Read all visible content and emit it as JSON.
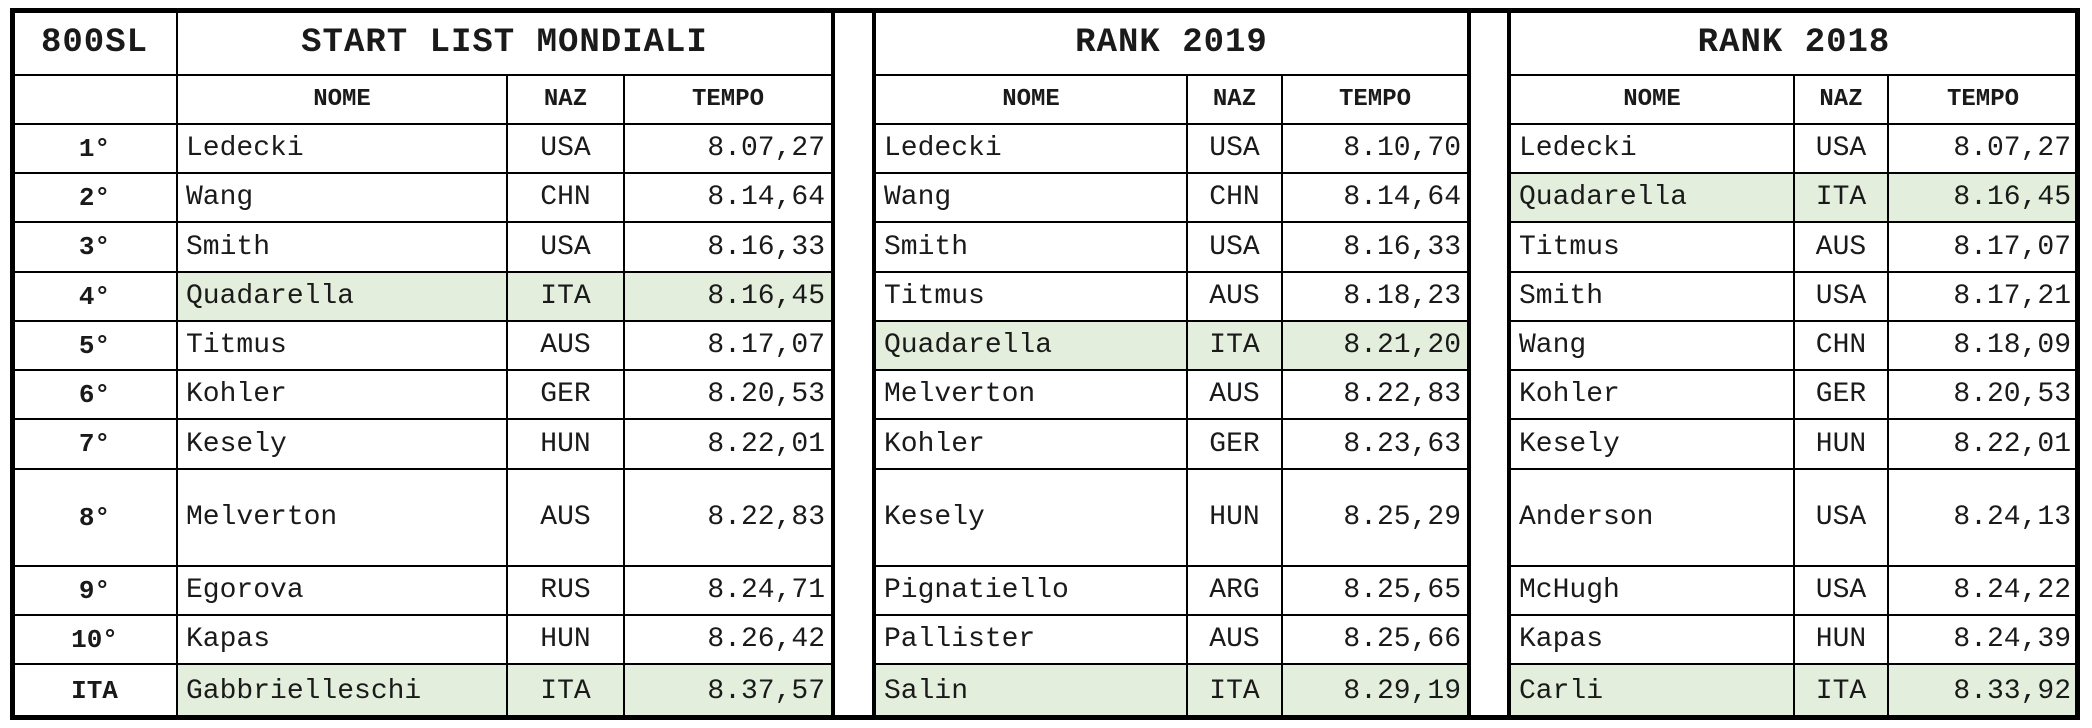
{
  "corner_label": "800SL",
  "rank_header": "",
  "column_headers": {
    "nome": "NOME",
    "naz": "NAZ",
    "tempo": "TEMPO"
  },
  "row_labels": [
    "1°",
    "2°",
    "3°",
    "4°",
    "5°",
    "6°",
    "7°",
    "8°",
    "9°",
    "10°",
    "ITA"
  ],
  "highlight_color": "#e3efdc",
  "sections": [
    {
      "id": "start-list",
      "title": "START LIST MONDIALI",
      "rows": [
        {
          "nome": "Ledecki",
          "naz": "USA",
          "tempo": "8.07,27",
          "highlight": false
        },
        {
          "nome": "Wang",
          "naz": "CHN",
          "tempo": "8.14,64",
          "highlight": false
        },
        {
          "nome": "Smith",
          "naz": "USA",
          "tempo": "8.16,33",
          "highlight": false
        },
        {
          "nome": "Quadarella",
          "naz": "ITA",
          "tempo": "8.16,45",
          "highlight": true
        },
        {
          "nome": "Titmus",
          "naz": "AUS",
          "tempo": "8.17,07",
          "highlight": false
        },
        {
          "nome": "Kohler",
          "naz": "GER",
          "tempo": "8.20,53",
          "highlight": false
        },
        {
          "nome": "Kesely",
          "naz": "HUN",
          "tempo": "8.22,01",
          "highlight": false
        },
        {
          "nome": "Melverton",
          "naz": "AUS",
          "tempo": "8.22,83",
          "highlight": false
        },
        {
          "nome": "Egorova",
          "naz": "RUS",
          "tempo": "8.24,71",
          "highlight": false
        },
        {
          "nome": "Kapas",
          "naz": "HUN",
          "tempo": "8.26,42",
          "highlight": false
        },
        {
          "nome": "Gabbrielleschi",
          "naz": "ITA",
          "tempo": "8.37,57",
          "highlight": true
        }
      ]
    },
    {
      "id": "rank-2019",
      "title": "RANK 2019",
      "rows": [
        {
          "nome": "Ledecki",
          "naz": "USA",
          "tempo": "8.10,70",
          "highlight": false
        },
        {
          "nome": "Wang",
          "naz": "CHN",
          "tempo": "8.14,64",
          "highlight": false
        },
        {
          "nome": "Smith",
          "naz": "USA",
          "tempo": "8.16,33",
          "highlight": false
        },
        {
          "nome": "Titmus",
          "naz": "AUS",
          "tempo": "8.18,23",
          "highlight": false
        },
        {
          "nome": "Quadarella",
          "naz": "ITA",
          "tempo": "8.21,20",
          "highlight": true
        },
        {
          "nome": "Melverton",
          "naz": "AUS",
          "tempo": "8.22,83",
          "highlight": false
        },
        {
          "nome": "Kohler",
          "naz": "GER",
          "tempo": "8.23,63",
          "highlight": false
        },
        {
          "nome": "Kesely",
          "naz": "HUN",
          "tempo": "8.25,29",
          "highlight": false
        },
        {
          "nome": "Pignatiello",
          "naz": "ARG",
          "tempo": "8.25,65",
          "highlight": false
        },
        {
          "nome": "Pallister",
          "naz": "AUS",
          "tempo": "8.25,66",
          "highlight": false
        },
        {
          "nome": "Salin",
          "naz": "ITA",
          "tempo": "8.29,19",
          "highlight": true
        }
      ]
    },
    {
      "id": "rank-2018",
      "title": "RANK 2018",
      "rows": [
        {
          "nome": "Ledecki",
          "naz": "USA",
          "tempo": "8.07,27",
          "highlight": false
        },
        {
          "nome": "Quadarella",
          "naz": "ITA",
          "tempo": "8.16,45",
          "highlight": true
        },
        {
          "nome": "Titmus",
          "naz": "AUS",
          "tempo": "8.17,07",
          "highlight": false
        },
        {
          "nome": "Smith",
          "naz": "USA",
          "tempo": "8.17,21",
          "highlight": false
        },
        {
          "nome": "Wang",
          "naz": "CHN",
          "tempo": "8.18,09",
          "highlight": false
        },
        {
          "nome": "Kohler",
          "naz": "GER",
          "tempo": "8.20,53",
          "highlight": false
        },
        {
          "nome": "Kesely",
          "naz": "HUN",
          "tempo": "8.22,01",
          "highlight": false
        },
        {
          "nome": "Anderson",
          "naz": "USA",
          "tempo": "8.24,13",
          "highlight": false
        },
        {
          "nome": "McHugh",
          "naz": "USA",
          "tempo": "8.24,22",
          "highlight": false
        },
        {
          "nome": "Kapas",
          "naz": "HUN",
          "tempo": "8.24,39",
          "highlight": false
        },
        {
          "nome": "Carli",
          "naz": "ITA",
          "tempo": "8.33,92",
          "highlight": true
        }
      ]
    }
  ]
}
